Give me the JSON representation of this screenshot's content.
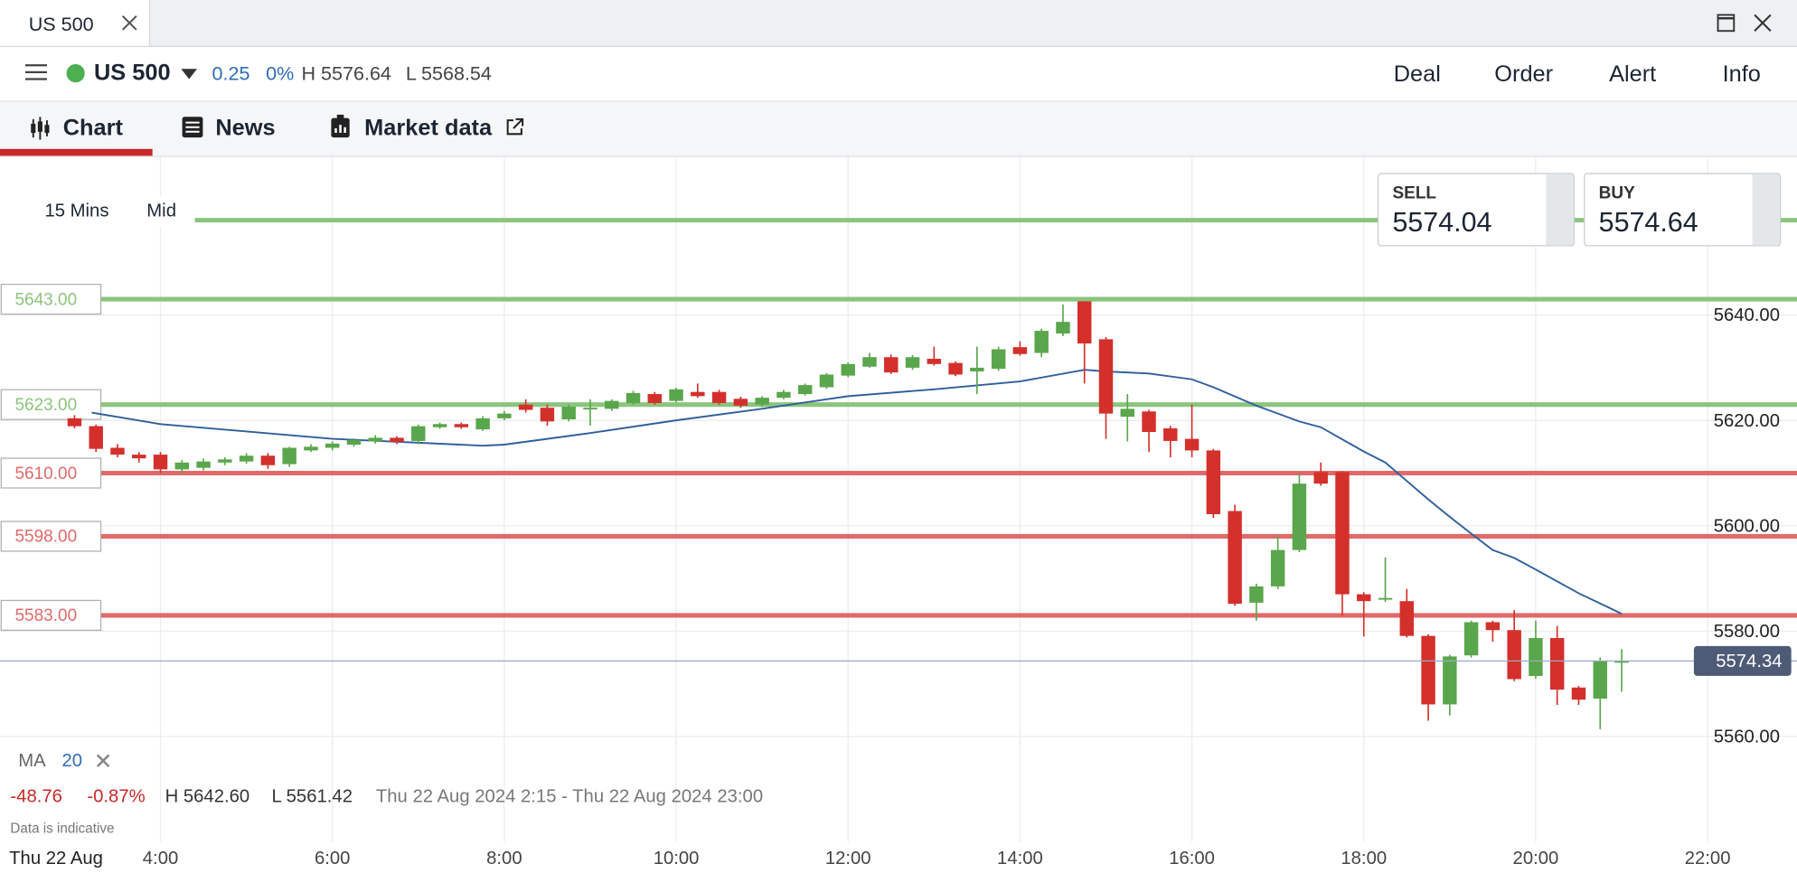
{
  "window": {
    "tab": "US 500"
  },
  "header": {
    "instrument": "US 500",
    "change": "0.25",
    "change_pct": "0%",
    "high": "H 5576.64",
    "low": "L 5568.54",
    "actions": [
      "Deal",
      "Order",
      "Alert",
      "Info"
    ]
  },
  "tabs": [
    "Chart",
    "News",
    "Market data"
  ],
  "chart_settings": {
    "interval": "15 Mins",
    "price_type": "Mid"
  },
  "quote": {
    "sell_label": "SELL",
    "sell": "5574.04",
    "buy_label": "BUY",
    "buy": "5574.64"
  },
  "indicator": {
    "name": "MA",
    "period": "20"
  },
  "stats": {
    "change": "-48.76",
    "change_pct": "-0.87%",
    "high": "H 5642.60",
    "low": "L 5561.42",
    "range": "Thu 22 Aug 2024 2:15 - Thu 22 Aug 2024 23:00",
    "note": "Data is indicative",
    "date": "Thu 22 Aug"
  },
  "chart_data": {
    "type": "candlestick",
    "x": [
      3,
      3.25,
      3.5,
      3.75,
      4,
      4.25,
      4.5,
      4.75,
      5,
      5.25,
      5.5,
      5.75,
      6,
      6.25,
      6.5,
      6.75,
      7,
      7.25,
      7.5,
      7.75,
      8,
      8.25,
      8.5,
      8.75,
      9,
      9.25,
      9.5,
      9.75,
      10,
      10.25,
      10.5,
      10.75,
      11,
      11.25,
      11.5,
      11.75,
      12,
      12.25,
      12.5,
      12.75,
      13,
      13.25,
      13.5,
      13.75,
      14,
      14.25,
      14.5,
      14.75,
      15,
      15.25,
      15.5,
      15.75,
      16,
      16.25,
      16.5,
      16.75,
      17,
      17.25,
      17.5,
      17.75,
      18,
      18.25,
      18.5,
      18.75,
      19,
      19.25,
      19.5,
      19.75,
      20,
      20.25,
      20.5,
      20.75,
      21
    ],
    "open": [
      5620.4,
      5618.9,
      5614.8,
      5613.5,
      5613.5,
      5610.7,
      5611.0,
      5612.0,
      5612.2,
      5613.3,
      5611.7,
      5614.3,
      5614.8,
      5615.4,
      5616.0,
      5616.7,
      5616.1,
      5618.7,
      5619.3,
      5618.3,
      5620.4,
      5623.0,
      5622.4,
      5620.2,
      5622.4,
      5622.2,
      5623.3,
      5625.0,
      5623.7,
      5625.4,
      5625.4,
      5624.1,
      5623.0,
      5624.3,
      5625.0,
      5626.3,
      5628.5,
      5630.2,
      5632.0,
      5630.0,
      5631.7,
      5630.9,
      5629.3,
      5629.8,
      5633.9,
      5632.8,
      5636.5,
      5642.6,
      5635.4,
      5620.7,
      5621.7,
      5618.5,
      5616.5,
      5614.3,
      5602.8,
      5585.4,
      5588.5,
      5595.4,
      5610.2,
      5610.2,
      5587.0,
      5586.0,
      5585.7,
      5579.1,
      5566.1,
      5575.4,
      5581.7,
      5580.2,
      5571.5,
      5578.7,
      5569.3,
      5567.2,
      5574.1
    ],
    "high": [
      5621.0,
      5619.2,
      5615.5,
      5614.0,
      5614.0,
      5612.5,
      5612.8,
      5613.0,
      5613.8,
      5613.8,
      5615.0,
      5615.5,
      5616.0,
      5616.6,
      5617.2,
      5617.0,
      5619.2,
      5619.6,
      5619.6,
      5620.8,
      5621.8,
      5624.0,
      5623.0,
      5623.0,
      5624.0,
      5624.0,
      5625.6,
      5625.4,
      5626.2,
      5627.0,
      5625.8,
      5624.5,
      5624.6,
      5625.8,
      5627.0,
      5629.0,
      5631.0,
      5632.8,
      5632.5,
      5632.4,
      5634.0,
      5631.2,
      5634.0,
      5634.0,
      5635.0,
      5637.4,
      5642.0,
      5642.6,
      5635.8,
      5625.0,
      5622.0,
      5619.0,
      5623.0,
      5614.6,
      5604.0,
      5589.0,
      5598.0,
      5610.0,
      5612.0,
      5610.4,
      5587.4,
      5594.0,
      5588.0,
      5579.4,
      5575.5,
      5582.0,
      5582.0,
      5584.0,
      5582.0,
      5581.0,
      5569.6,
      5575.0,
      5576.6
    ],
    "low": [
      5618.5,
      5614.0,
      5613.0,
      5612.0,
      5610.0,
      5610.0,
      5610.5,
      5611.5,
      5611.8,
      5610.8,
      5611.2,
      5614.0,
      5614.3,
      5615.0,
      5615.6,
      5615.5,
      5615.5,
      5618.4,
      5618.4,
      5618.0,
      5620.0,
      5621.5,
      5619.0,
      5619.8,
      5619.0,
      5621.8,
      5623.0,
      5623.0,
      5623.4,
      5624.3,
      5623.0,
      5622.4,
      5622.6,
      5624.0,
      5624.7,
      5626.0,
      5628.2,
      5630.0,
      5628.8,
      5629.6,
      5630.4,
      5628.4,
      5625.0,
      5629.4,
      5632.3,
      5632.0,
      5636.0,
      5627.0,
      5616.5,
      5616.0,
      5614.0,
      5613.0,
      5613.0,
      5601.5,
      5584.8,
      5582.0,
      5588.0,
      5595.0,
      5607.6,
      5583.0,
      5579.0,
      5585.5,
      5578.8,
      5563.0,
      5564.0,
      5575.0,
      5578.0,
      5570.5,
      5571.0,
      5566.0,
      5566.0,
      5561.4,
      5568.5
    ],
    "close": [
      5618.9,
      5614.6,
      5613.5,
      5612.8,
      5610.7,
      5612.0,
      5612.2,
      5612.6,
      5613.3,
      5611.5,
      5614.8,
      5615.0,
      5615.6,
      5616.3,
      5616.7,
      5615.9,
      5618.9,
      5619.3,
      5618.7,
      5620.4,
      5621.3,
      5622.0,
      5619.8,
      5622.6,
      5622.4,
      5623.7,
      5625.2,
      5623.3,
      5625.9,
      5624.6,
      5623.3,
      5622.8,
      5624.3,
      5625.4,
      5626.7,
      5628.7,
      5630.7,
      5632.0,
      5629.1,
      5632.0,
      5630.7,
      5628.7,
      5630.0,
      5633.5,
      5632.6,
      5637.0,
      5638.7,
      5634.6,
      5621.3,
      5622.2,
      5617.8,
      5616.1,
      5614.3,
      5602.2,
      5585.2,
      5588.5,
      5595.4,
      5608.0,
      5608.0,
      5587.0,
      5585.7,
      5586.3,
      5579.1,
      5566.1,
      5575.2,
      5581.7,
      5580.2,
      5570.9,
      5578.7,
      5568.9,
      5567.0,
      5574.3,
      5574.34
    ],
    "up_color": "#5aa64c",
    "down_color": "#d3302c",
    "ma": {
      "color": "#2f5f9a",
      "x": [
        3.2,
        4,
        6,
        7.75,
        8,
        9,
        10,
        11,
        12,
        13,
        14,
        14.75,
        15,
        15.5,
        16,
        16.25,
        16.75,
        17.25,
        17.5,
        18,
        18.25,
        18.5,
        18.75,
        19,
        19.25,
        19.5,
        19.75,
        20,
        20.5,
        21
      ],
      "values": [
        5621.5,
        5619.3,
        5616.5,
        5615.2,
        5615.4,
        5617.6,
        5620.0,
        5622.2,
        5624.6,
        5625.9,
        5627.4,
        5629.6,
        5629.3,
        5628.9,
        5627.8,
        5626.3,
        5622.8,
        5619.8,
        5618.7,
        5614.1,
        5612.0,
        5608.5,
        5605.0,
        5601.7,
        5598.5,
        5595.4,
        5593.9,
        5591.7,
        5587.2,
        5583.3
      ]
    },
    "levels": [
      {
        "value": 5658,
        "color": "#8cc47e"
      },
      {
        "value": 5643,
        "label": "5643.00",
        "color": "#8cc47e"
      },
      {
        "value": 5623,
        "label": "5623.00",
        "color": "#8cc47e"
      },
      {
        "value": 5610,
        "label": "5610.00",
        "color": "#e06a6a"
      },
      {
        "value": 5598,
        "label": "5598.00",
        "color": "#e06a6a"
      },
      {
        "value": 5583,
        "label": "5583.00",
        "color": "#e06a6a"
      }
    ],
    "last_price": {
      "value": 5574.34,
      "label": "5574.34"
    },
    "xlim": [
      2.133,
      23.04
    ],
    "ylim": [
      5534.1,
      5670
    ],
    "xticks": [
      {
        "value": 4,
        "label": "4:00"
      },
      {
        "value": 6,
        "label": "6:00"
      },
      {
        "value": 8,
        "label": "8:00"
      },
      {
        "value": 10,
        "label": "10:00"
      },
      {
        "value": 12,
        "label": "12:00"
      },
      {
        "value": 14,
        "label": "14:00"
      },
      {
        "value": 16,
        "label": "16:00"
      },
      {
        "value": 18,
        "label": "18:00"
      },
      {
        "value": 20,
        "label": "20:00"
      },
      {
        "value": 22,
        "label": "22:00"
      }
    ],
    "yticks": [
      {
        "value": 5560,
        "label": "5560.00"
      },
      {
        "value": 5580,
        "label": "5580.00"
      },
      {
        "value": 5600,
        "label": "5600.00"
      },
      {
        "value": 5620,
        "label": "5620.00"
      },
      {
        "value": 5640,
        "label": "5640.00"
      }
    ],
    "grid": true
  }
}
